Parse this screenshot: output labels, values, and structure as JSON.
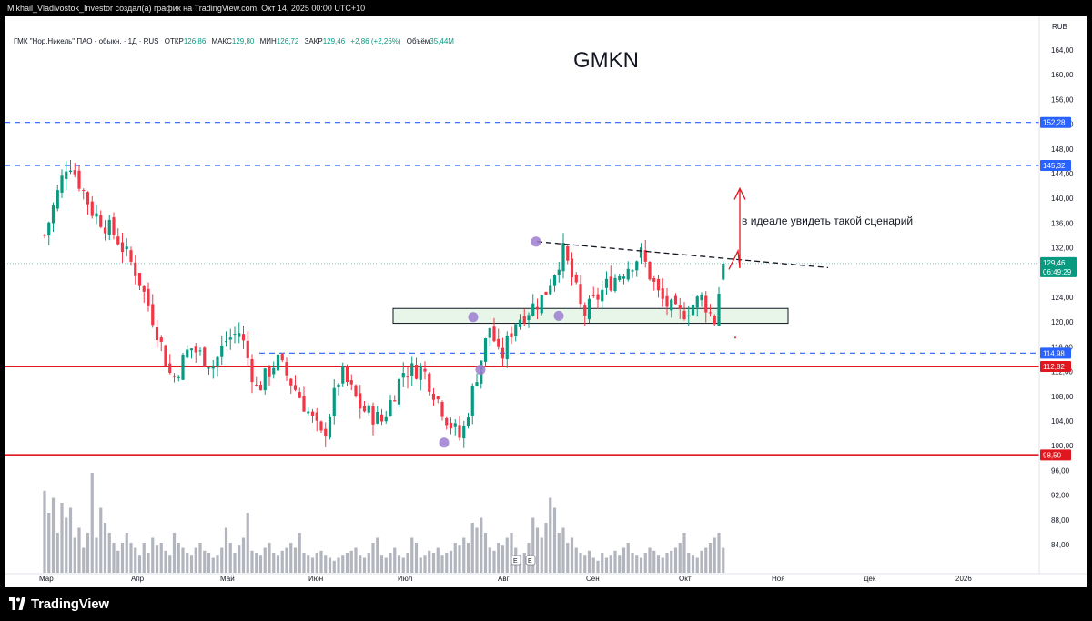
{
  "header": {
    "text": "Mikhail_Vladivostok_Investor создал(а) график на TradingView.com, Окт 14, 2025 00:00 UTC+10"
  },
  "legend": {
    "symbol": "ГМК \"Нор.Никель\" ПАО - обыкн. · 1Д · RUS",
    "open_label": "ОТКР",
    "open": "126,86",
    "high_label": "МАКС",
    "high": "129,80",
    "low_label": "МИН",
    "low": "126,72",
    "close_label": "ЗАКР",
    "close": "129,46",
    "change": "+2,86 (+2,26%)",
    "volume_label": "Объём",
    "volume": "35,44M"
  },
  "footer": {
    "logo_text": "TradingView"
  },
  "colors": {
    "up": "#089981",
    "down": "#f23645",
    "volume": "#b2b5be",
    "support": "#e0171f",
    "level": "#2962ff",
    "zone_fill": "#e8f5e9",
    "marker": "#9c7bd0",
    "price_badge": "#089981"
  },
  "chart_data": {
    "type": "candlestick",
    "title": "GMKN",
    "currency": "RUB",
    "annotation": "в идеале увидеть такой сценарий",
    "y_ticks": [
      "84,00",
      "88,00",
      "92,00",
      "96,00",
      "100,00",
      "104,00",
      "108,00",
      "112,00",
      "116,00",
      "120,00",
      "124,00",
      "128,00",
      "132,00",
      "136,00",
      "140,00",
      "144,00",
      "148,00",
      "152,00",
      "156,00",
      "160,00",
      "164,00"
    ],
    "y_range": [
      81.0,
      168.0
    ],
    "x_months": [
      "Мар",
      "Апр",
      "Май",
      "Июн",
      "Июл",
      "Авг",
      "Сен",
      "Окт",
      "Ноя",
      "Дек",
      "2026"
    ],
    "levels": [
      {
        "value": 152.28,
        "label": "152,28",
        "style": "dashed",
        "color": "#2962ff"
      },
      {
        "value": 145.32,
        "label": "145,32",
        "style": "dashed",
        "color": "#2962ff"
      },
      {
        "value": 114.98,
        "label": "114,98",
        "style": "dashed",
        "color": "#2962ff"
      },
      {
        "value": 112.82,
        "label": "112,82",
        "style": "solid",
        "color": "#e0171f"
      },
      {
        "value": 98.5,
        "label": "98,50",
        "style": "solid",
        "color": "#e0171f"
      }
    ],
    "last_price": {
      "value": 129.46,
      "label": "129,46",
      "countdown": "06:49:29"
    },
    "zone": {
      "from": 119.8,
      "to": 122.2
    },
    "resistance_trend": {
      "from_date": "Авг",
      "from": 133.0,
      "to_date": "Ноя",
      "to": 128.8
    },
    "events": [
      "E",
      "E"
    ],
    "anchor_points": [
      {
        "month": 0,
        "day": 0,
        "value": 134.0
      },
      {
        "month": 0,
        "day": 8,
        "value": 146.5
      },
      {
        "month": 0,
        "day": 16,
        "value": 138.0
      },
      {
        "month": 0,
        "day": 24,
        "value": 134.0
      },
      {
        "month": 1,
        "day": 0,
        "value": 128.0
      },
      {
        "month": 1,
        "day": 6,
        "value": 120.0
      },
      {
        "month": 1,
        "day": 12,
        "value": 110.5
      },
      {
        "month": 1,
        "day": 18,
        "value": 116.0
      },
      {
        "month": 1,
        "day": 26,
        "value": 113.0
      },
      {
        "month": 2,
        "day": 0,
        "value": 117.0
      },
      {
        "month": 2,
        "day": 5,
        "value": 118.5
      },
      {
        "month": 2,
        "day": 11,
        "value": 109.0
      },
      {
        "month": 2,
        "day": 18,
        "value": 114.0
      },
      {
        "month": 2,
        "day": 26,
        "value": 108.0
      },
      {
        "month": 3,
        "day": 3,
        "value": 101.0
      },
      {
        "month": 3,
        "day": 9,
        "value": 112.0
      },
      {
        "month": 3,
        "day": 16,
        "value": 106.0
      },
      {
        "month": 3,
        "day": 23,
        "value": 104.0
      },
      {
        "month": 3,
        "day": 30,
        "value": 112.0
      },
      {
        "month": 4,
        "day": 6,
        "value": 112.5
      },
      {
        "month": 4,
        "day": 14,
        "value": 104.0
      },
      {
        "month": 4,
        "day": 18,
        "value": 101.0
      },
      {
        "month": 4,
        "day": 22,
        "value": 110.0
      },
      {
        "month": 4,
        "day": 27,
        "value": 119.5
      },
      {
        "month": 4,
        "day": 30,
        "value": 113.5
      },
      {
        "month": 5,
        "day": 4,
        "value": 120.0
      },
      {
        "month": 5,
        "day": 14,
        "value": 124.0
      },
      {
        "month": 5,
        "day": 21,
        "value": 131.5
      },
      {
        "month": 5,
        "day": 25,
        "value": 126.0
      },
      {
        "month": 5,
        "day": 28,
        "value": 121.0
      },
      {
        "month": 6,
        "day": 5,
        "value": 126.0
      },
      {
        "month": 6,
        "day": 16,
        "value": 131.0
      },
      {
        "month": 6,
        "day": 22,
        "value": 124.0
      },
      {
        "month": 6,
        "day": 28,
        "value": 121.0
      },
      {
        "month": 7,
        "day": 6,
        "value": 124.0
      },
      {
        "month": 7,
        "day": 10,
        "value": 120.0
      },
      {
        "month": 7,
        "day": 13,
        "value": 129.5
      }
    ],
    "volume_profile": [
      82,
      60,
      75,
      40,
      70,
      55,
      65,
      35,
      45,
      25,
      40,
      100,
      35,
      65,
      50,
      40,
      30,
      22,
      30,
      40,
      30,
      25,
      18,
      30,
      20,
      35,
      28,
      30,
      22,
      18,
      40,
      30,
      25,
      20,
      18,
      25,
      30,
      22,
      20,
      15,
      18,
      25,
      45,
      30,
      20,
      28,
      35,
      60,
      22,
      20,
      18,
      25,
      30,
      20,
      18,
      22,
      25,
      30,
      25,
      40,
      20,
      18,
      15,
      20,
      22,
      18,
      15,
      12,
      15,
      18,
      20,
      22,
      25,
      18,
      15,
      20,
      30,
      35,
      18,
      15,
      20,
      25,
      18,
      15,
      20,
      35,
      30,
      15,
      18,
      22,
      20,
      25,
      18,
      20,
      22,
      30,
      28,
      35,
      30,
      50,
      45,
      55,
      40,
      25,
      22,
      30,
      28,
      35,
      40,
      25,
      18,
      20,
      30,
      55,
      45,
      35,
      50,
      75,
      65,
      40,
      45,
      30,
      35,
      25,
      20,
      18,
      22,
      15,
      12,
      20,
      15,
      18,
      22,
      18,
      25,
      30,
      20,
      18,
      15,
      20,
      25,
      22,
      18,
      15,
      20,
      22,
      25,
      30,
      40,
      20,
      18,
      15,
      22,
      25,
      30,
      35,
      40,
      25,
      20,
      18,
      15,
      20,
      25,
      30,
      22,
      18,
      20,
      25,
      30,
      35,
      50,
      40,
      30,
      35,
      25,
      20,
      18,
      22,
      15,
      20,
      25,
      18,
      30,
      35,
      45,
      50,
      90,
      40,
      55,
      35,
      30
    ]
  }
}
